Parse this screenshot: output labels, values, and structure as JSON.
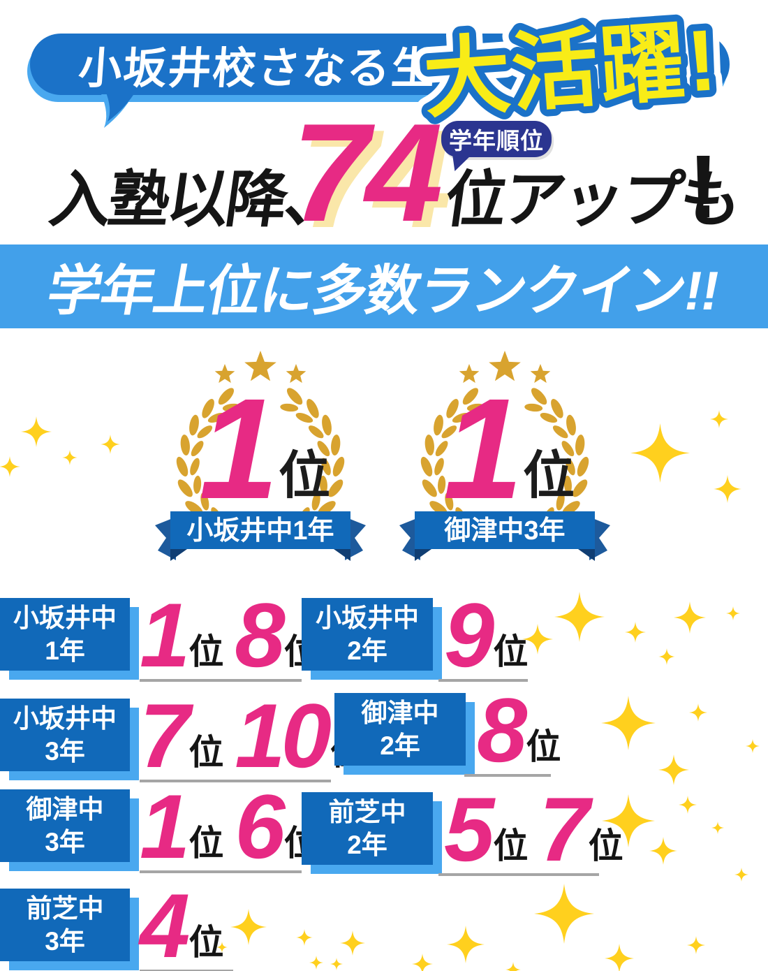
{
  "colors": {
    "primary": "#1169B9",
    "light": "#49A8EF",
    "band": "#42A0EA",
    "bubble": "#1B72C8",
    "pink": "#E72A84",
    "yellow": "#F8EC17",
    "gold": "#D8A32F",
    "sparkle": "#FFD01E",
    "navy": "#2B3590",
    "cream": "#FAE7A9",
    "ink": "#151515",
    "rule": "#A5A5A5",
    "ribbonSide": "#1D5A9C",
    "ribbonDark": "#103E73",
    "white": "#FFFFFF"
  },
  "header": {
    "bubble_text": "小坂井校さなる生",
    "highlight": "大活躍!",
    "line2_prefix": "入塾以降、",
    "big_number": "74",
    "badge": "学年順位",
    "line2_suffix": "位アップも",
    "exclaim": "!"
  },
  "band": {
    "text": "学年上位に多数ランクイン!!"
  },
  "wreaths": [
    {
      "rank": "1",
      "unit": "位",
      "school": "小坂井中1年"
    },
    {
      "rank": "1",
      "unit": "位",
      "school": "御津中3年"
    }
  ],
  "rankings": [
    {
      "school1": "小坂井中",
      "school2": "1年",
      "ranks": [
        {
          "num": "1",
          "unit": "位"
        },
        {
          "num": "8",
          "unit": "位"
        }
      ]
    },
    {
      "school1": "小坂井中",
      "school2": "2年",
      "ranks": [
        {
          "num": "9",
          "unit": "位"
        }
      ]
    },
    {
      "school1": "小坂井中",
      "school2": "3年",
      "ranks": [
        {
          "num": "7",
          "unit": "位"
        },
        {
          "num": "10",
          "unit": "位"
        }
      ]
    },
    {
      "school1": "御津中",
      "school2": "2年",
      "ranks": [
        {
          "num": "8",
          "unit": "位"
        }
      ]
    },
    {
      "school1": "御津中",
      "school2": "3年",
      "ranks": [
        {
          "num": "1",
          "unit": "位"
        },
        {
          "num": "6",
          "unit": "位"
        }
      ]
    },
    {
      "school1": "前芝中",
      "school2": "2年",
      "ranks": [
        {
          "num": "5",
          "unit": "位"
        },
        {
          "num": "7",
          "unit": "位"
        }
      ]
    },
    {
      "school1": "前芝中",
      "school2": "3年",
      "ranks": [
        {
          "num": "4",
          "unit": "位"
        }
      ]
    }
  ]
}
